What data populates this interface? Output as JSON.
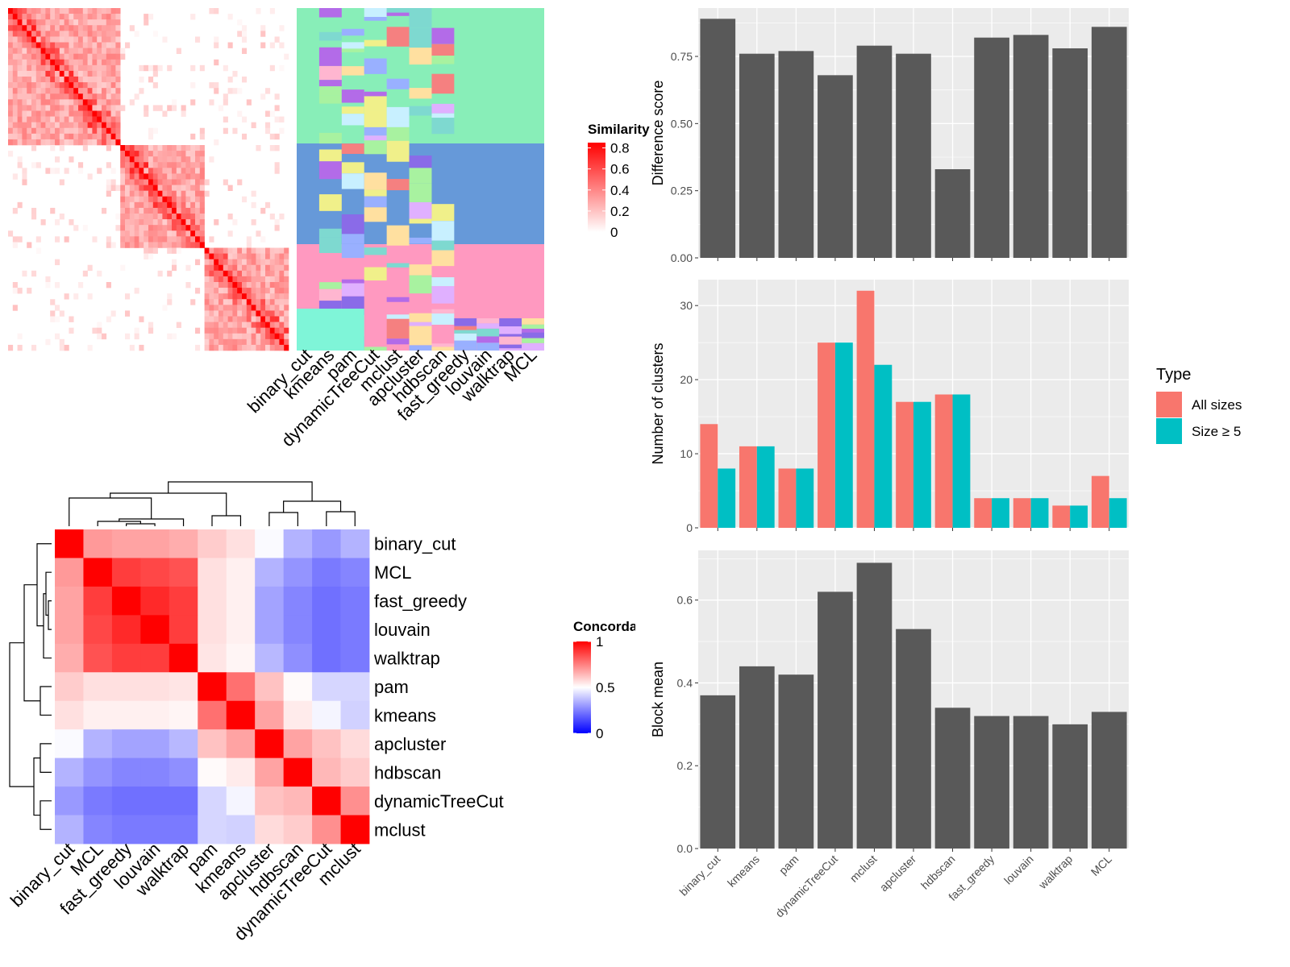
{
  "colors": {
    "bar_dark": "#595959",
    "panel_bg": "#EBEBEB",
    "grid": "#FFFFFF",
    "series_all": "#F8766D",
    "series_size5": "#00BFC4",
    "red": "#FF0000",
    "blue": "#0000FF",
    "sim_green": "#88EEB8",
    "sim_blue": "#6699D9",
    "sim_pink": "#FF99C0",
    "sim_mint": "#7FF5D8"
  },
  "methods": [
    "binary_cut",
    "kmeans",
    "pam",
    "dynamicTreeCut",
    "mclust",
    "apcluster",
    "hdbscan",
    "fast_greedy",
    "louvain",
    "walktrap",
    "MCL"
  ],
  "similarity_heatmap": {
    "legend_title": "Similarity",
    "legend_ticks": [
      "0.8",
      "0.6",
      "0.4",
      "0.2",
      "0"
    ],
    "legend_values": [
      0.8,
      0.6,
      0.4,
      0.2,
      0
    ],
    "column_labels": [
      "binary_cut",
      "kmeans",
      "pam",
      "dynamicTreeCut",
      "mclust",
      "apcluster",
      "hdbscan",
      "fast_greedy",
      "louvain",
      "walktrap",
      "MCL"
    ]
  },
  "concordance": {
    "legend_title": "Concordance",
    "legend_ticks": [
      "1",
      "0.5",
      "0"
    ],
    "legend_values": [
      1,
      0.5,
      0
    ],
    "order": [
      "binary_cut",
      "MCL",
      "fast_greedy",
      "louvain",
      "walktrap",
      "pam",
      "kmeans",
      "apcluster",
      "hdbscan",
      "dynamicTreeCut",
      "mclust"
    ],
    "matrix": [
      [
        1.0,
        0.7,
        0.68,
        0.68,
        0.66,
        0.6,
        0.56,
        0.49,
        0.35,
        0.3,
        0.35
      ],
      [
        0.7,
        1.0,
        0.88,
        0.86,
        0.84,
        0.56,
        0.53,
        0.35,
        0.29,
        0.24,
        0.26
      ],
      [
        0.68,
        0.88,
        1.0,
        0.92,
        0.88,
        0.56,
        0.53,
        0.32,
        0.26,
        0.22,
        0.24
      ],
      [
        0.68,
        0.86,
        0.92,
        1.0,
        0.88,
        0.56,
        0.53,
        0.32,
        0.26,
        0.22,
        0.24
      ],
      [
        0.66,
        0.84,
        0.88,
        0.88,
        1.0,
        0.55,
        0.52,
        0.36,
        0.28,
        0.22,
        0.24
      ],
      [
        0.6,
        0.56,
        0.56,
        0.56,
        0.55,
        1.0,
        0.78,
        0.62,
        0.51,
        0.42,
        0.42
      ],
      [
        0.56,
        0.53,
        0.53,
        0.53,
        0.52,
        0.78,
        1.0,
        0.68,
        0.54,
        0.48,
        0.41
      ],
      [
        0.49,
        0.35,
        0.32,
        0.32,
        0.36,
        0.62,
        0.68,
        1.0,
        0.68,
        0.62,
        0.57
      ],
      [
        0.35,
        0.29,
        0.26,
        0.26,
        0.28,
        0.51,
        0.54,
        0.68,
        1.0,
        0.64,
        0.6
      ],
      [
        0.3,
        0.24,
        0.22,
        0.22,
        0.22,
        0.42,
        0.48,
        0.62,
        0.64,
        1.0,
        0.72
      ],
      [
        0.35,
        0.26,
        0.24,
        0.24,
        0.24,
        0.42,
        0.41,
        0.57,
        0.6,
        0.72,
        1.0
      ]
    ]
  },
  "chart_data": [
    {
      "type": "bar",
      "ylabel": "Difference score",
      "categories": [
        "binary_cut",
        "kmeans",
        "pam",
        "dynamicTreeCut",
        "mclust",
        "apcluster",
        "hdbscan",
        "fast_greedy",
        "louvain",
        "walktrap",
        "MCL"
      ],
      "values": [
        0.89,
        0.76,
        0.77,
        0.68,
        0.79,
        0.76,
        0.33,
        0.82,
        0.83,
        0.78,
        0.86
      ],
      "ylim": [
        0,
        0.93
      ],
      "yticks": [
        "0.00",
        "0.25",
        "0.50",
        "0.75"
      ]
    },
    {
      "type": "bar",
      "ylabel": "Number of clusters",
      "categories": [
        "binary_cut",
        "kmeans",
        "pam",
        "dynamicTreeCut",
        "mclust",
        "apcluster",
        "hdbscan",
        "fast_greedy",
        "louvain",
        "walktrap",
        "MCL"
      ],
      "series": [
        {
          "name": "All sizes",
          "values": [
            14,
            11,
            8,
            25,
            32,
            17,
            18,
            4,
            4,
            3,
            7
          ]
        },
        {
          "name": "Size ≥ 5",
          "values": [
            8,
            11,
            8,
            25,
            22,
            17,
            18,
            4,
            4,
            3,
            4
          ]
        }
      ],
      "ylim": [
        0,
        33.5
      ],
      "yticks": [
        "0",
        "10",
        "20",
        "30"
      ],
      "legend_title": "Type"
    },
    {
      "type": "bar",
      "ylabel": "Block mean",
      "categories": [
        "binary_cut",
        "kmeans",
        "pam",
        "dynamicTreeCut",
        "mclust",
        "apcluster",
        "hdbscan",
        "fast_greedy",
        "louvain",
        "walktrap",
        "MCL"
      ],
      "values": [
        0.37,
        0.44,
        0.42,
        0.62,
        0.69,
        0.53,
        0.34,
        0.32,
        0.32,
        0.3,
        0.33
      ],
      "ylim": [
        0,
        0.72
      ],
      "yticks": [
        "0.0",
        "0.2",
        "0.4",
        "0.6"
      ]
    }
  ]
}
